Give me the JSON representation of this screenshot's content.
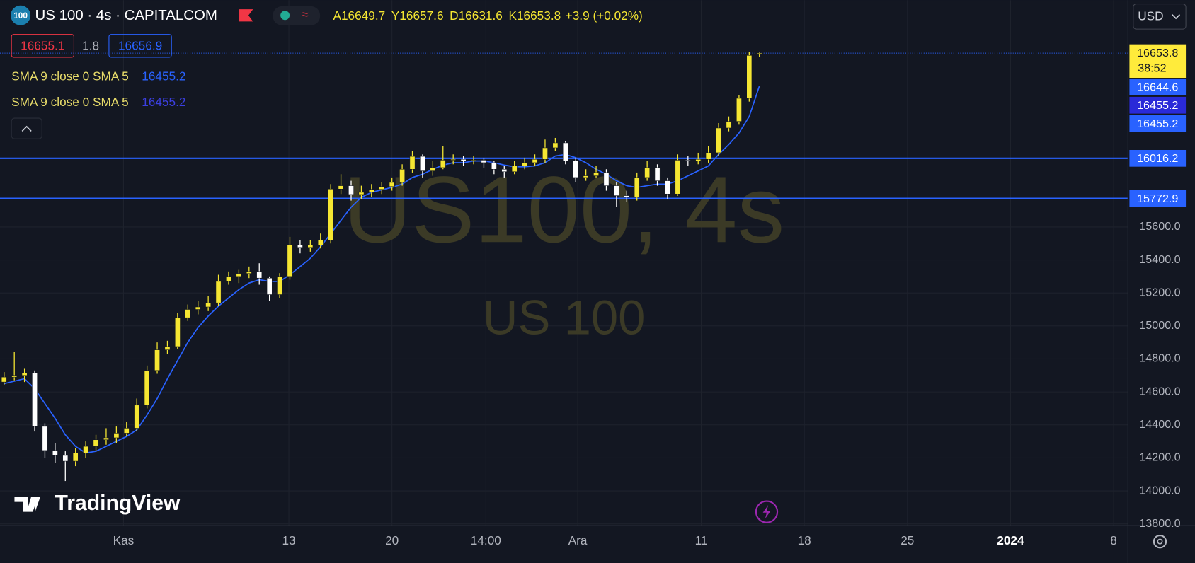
{
  "header": {
    "badge": "100",
    "symbol": "US 100 · 4s · CAPITALCOM",
    "ohlc_prefixes": [
      "A",
      "Y",
      "D",
      "K"
    ],
    "change": "+3.9 (+0.02%)",
    "currency": "USD"
  },
  "trade": {
    "sell": 16655.1,
    "spread": 1.8,
    "buy": 16656.9
  },
  "chart_data": {
    "type": "candlestick",
    "up_color": "#f5e632",
    "down_color": "#ffffff",
    "ohlc": [
      [
        14660,
        14720,
        14640,
        14690
      ],
      [
        14690,
        14845,
        14670,
        14700
      ],
      [
        14700,
        14740,
        14660,
        14714
      ],
      [
        14714,
        14730,
        14360,
        14391
      ],
      [
        14391,
        14410,
        14200,
        14245
      ],
      [
        14245,
        14290,
        14170,
        14215
      ],
      [
        14215,
        14240,
        14060,
        14180
      ],
      [
        14180,
        14260,
        14150,
        14230
      ],
      [
        14230,
        14300,
        14200,
        14270
      ],
      [
        14270,
        14340,
        14240,
        14310
      ],
      [
        14310,
        14380,
        14280,
        14322
      ],
      [
        14322,
        14390,
        14290,
        14350
      ],
      [
        14350,
        14420,
        14330,
        14380
      ],
      [
        14380,
        14560,
        14360,
        14520
      ],
      [
        14520,
        14760,
        14500,
        14730
      ],
      [
        14730,
        14900,
        14710,
        14855
      ],
      [
        14855,
        14910,
        14830,
        14875
      ],
      [
        14875,
        15080,
        14860,
        15050
      ],
      [
        15050,
        15130,
        15030,
        15100
      ],
      [
        15100,
        15150,
        15070,
        15115
      ],
      [
        15115,
        15180,
        15090,
        15140
      ],
      [
        15140,
        15310,
        15120,
        15270
      ],
      [
        15270,
        15330,
        15250,
        15300
      ],
      [
        15300,
        15340,
        15260,
        15318
      ],
      [
        15318,
        15360,
        15290,
        15330
      ],
      [
        15330,
        15380,
        15250,
        15290
      ],
      [
        15290,
        15300,
        15150,
        15190
      ],
      [
        15190,
        15320,
        15170,
        15300
      ],
      [
        15300,
        15540,
        15280,
        15490
      ],
      [
        15490,
        15520,
        15440,
        15476
      ],
      [
        15476,
        15520,
        15450,
        15490
      ],
      [
        15490,
        15560,
        15470,
        15520
      ],
      [
        15520,
        15860,
        15500,
        15830
      ],
      [
        15830,
        15920,
        15800,
        15850
      ],
      [
        15850,
        15880,
        15760,
        15797
      ],
      [
        15797,
        15850,
        15770,
        15810
      ],
      [
        15810,
        15860,
        15780,
        15828
      ],
      [
        15828,
        15870,
        15800,
        15845
      ],
      [
        15845,
        15900,
        15820,
        15870
      ],
      [
        15870,
        15980,
        15850,
        15950
      ],
      [
        15950,
        16060,
        15930,
        16028
      ],
      [
        16028,
        16040,
        15900,
        15940
      ],
      [
        15940,
        16000,
        15910,
        15960
      ],
      [
        15960,
        16090,
        15950,
        16005
      ],
      [
        16005,
        16040,
        15980,
        16010
      ],
      [
        16010,
        16030,
        15970,
        16000
      ],
      [
        16000,
        16030,
        15980,
        16005
      ],
      [
        16005,
        16020,
        15960,
        15990
      ],
      [
        15990,
        16000,
        15920,
        15950
      ],
      [
        15950,
        15970,
        15900,
        15935
      ],
      [
        15935,
        16000,
        15920,
        15970
      ],
      [
        15970,
        16020,
        15950,
        15990
      ],
      [
        15990,
        16040,
        15970,
        16010
      ],
      [
        16010,
        16130,
        15990,
        16080
      ],
      [
        16080,
        16140,
        16060,
        16110
      ],
      [
        16110,
        16120,
        15980,
        16000
      ],
      [
        16000,
        16020,
        15870,
        15900
      ],
      [
        15900,
        15950,
        15880,
        15910
      ],
      [
        15910,
        15970,
        15900,
        15930
      ],
      [
        15930,
        15950,
        15820,
        15850
      ],
      [
        15850,
        15870,
        15720,
        15790
      ],
      [
        15790,
        15820,
        15750,
        15780
      ],
      [
        15780,
        15930,
        15760,
        15900
      ],
      [
        15900,
        16000,
        15880,
        15960
      ],
      [
        15960,
        15980,
        15850,
        15880
      ],
      [
        15880,
        15900,
        15770,
        15800
      ],
      [
        15800,
        16040,
        15790,
        16005
      ],
      [
        16005,
        16030,
        15970,
        16000
      ],
      [
        16000,
        16050,
        15980,
        16010
      ],
      [
        16010,
        16090,
        15990,
        16050
      ],
      [
        16050,
        16230,
        16030,
        16200
      ],
      [
        16200,
        16270,
        16180,
        16240
      ],
      [
        16240,
        16400,
        16220,
        16380
      ],
      [
        16380,
        16660,
        16360,
        16640
      ],
      [
        16649.7,
        16657.6,
        16631.6,
        16653.8
      ]
    ],
    "sma": {
      "color": "#2962ff",
      "values": [
        14650,
        14665,
        14680,
        14620,
        14530,
        14440,
        14340,
        14270,
        14230,
        14240,
        14270,
        14300,
        14330,
        14370,
        14460,
        14560,
        14680,
        14790,
        14900,
        14990,
        15060,
        15120,
        15170,
        15220,
        15260,
        15280,
        15270,
        15270,
        15310,
        15360,
        15410,
        15480,
        15560,
        15640,
        15720,
        15780,
        15810,
        15825,
        15840,
        15860,
        15900,
        15920,
        15950,
        15975,
        15990,
        15990,
        16000,
        16000,
        15990,
        15975,
        15965,
        15965,
        15970,
        15990,
        16030,
        16040,
        16020,
        15990,
        15950,
        15920,
        15880,
        15850,
        15840,
        15850,
        15860,
        15860,
        15880,
        15910,
        15940,
        15970,
        16040,
        16100,
        16170,
        16270,
        16455.2
      ]
    },
    "indicators": [
      {
        "name": "SMA 9 close 0 SMA 5",
        "value": 16455.2
      },
      {
        "name": "SMA 9 close 0 SMA 5",
        "value": 16455.2
      }
    ],
    "levels": [
      16016.2,
      15772.9
    ],
    "level_color": "#2962ff",
    "countdown": "38:52",
    "price_labels": [
      16644.6
    ],
    "watermark": [
      "US100, 4s",
      "US 100"
    ],
    "brand": "TradingView",
    "ylim": [
      13790,
      16975
    ],
    "yticks": [
      {
        "value": 13800,
        "label": "13800.0"
      },
      {
        "value": 14000,
        "label": "14000.0"
      },
      {
        "value": 14200,
        "label": "14200.0"
      },
      {
        "value": 14400,
        "label": "14400.0"
      },
      {
        "value": 14600,
        "label": "14600.0"
      },
      {
        "value": 14800,
        "label": "14800.0"
      },
      {
        "value": 15000,
        "label": "15000.0"
      },
      {
        "value": 15200,
        "label": "15200.0"
      },
      {
        "value": 15400,
        "label": "15400.0"
      },
      {
        "value": 15600,
        "label": "15600.0"
      }
    ],
    "xlim": [
      -0.4,
      110.1
    ],
    "xticks": [
      {
        "value": 11.7,
        "label": "Kas"
      },
      {
        "value": 27.9,
        "label": "13"
      },
      {
        "value": 38,
        "label": "20"
      },
      {
        "value": 47.2,
        "label": "14:00"
      },
      {
        "value": 56.2,
        "label": "Ara"
      },
      {
        "value": 68.3,
        "label": "11"
      },
      {
        "value": 78.4,
        "label": "18"
      },
      {
        "value": 88.5,
        "label": "25"
      },
      {
        "value": 98.6,
        "label": "2024"
      },
      {
        "value": 108.7,
        "label": "8"
      }
    ],
    "grid": true
  }
}
